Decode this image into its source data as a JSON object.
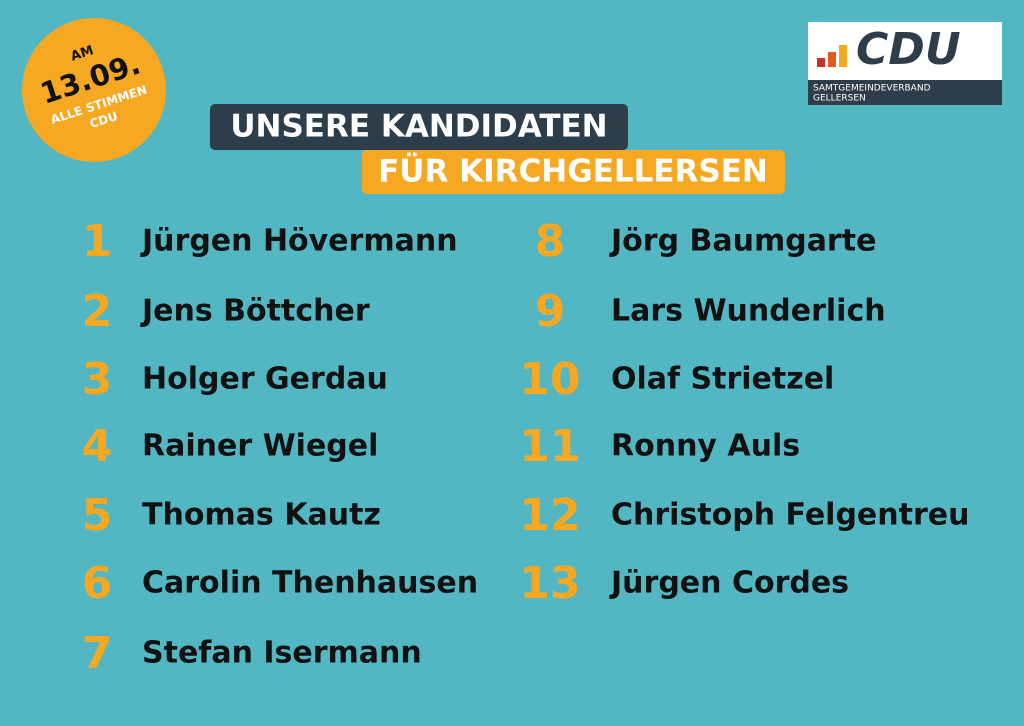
{
  "badge": {
    "lines": [
      "AM",
      "13.09.",
      "ALLE STIMMEN",
      "CDU"
    ]
  },
  "logo": {
    "name": "CDU",
    "subtitle": [
      "SAMTGEMEINDEVERBAND",
      "GELLERSEN"
    ]
  },
  "title": {
    "line1": "UNSERE KANDIDATEN",
    "line2": "FÜR KIRCHGELLERSEN"
  },
  "candidates": [
    {
      "number": "1",
      "name": "Jürgen Hövermann"
    },
    {
      "number": "2",
      "name": "Jens Böttcher"
    },
    {
      "number": "3",
      "name": "Holger Gerdau"
    },
    {
      "number": "4",
      "name": "Rainer Wiegel"
    },
    {
      "number": "5",
      "name": "Thomas Kautz"
    },
    {
      "number": "6",
      "name": "Carolin Thenhausen"
    },
    {
      "number": "7",
      "name": "Stefan Isermann"
    },
    {
      "number": "8",
      "name": "Jörg Baumgarte"
    },
    {
      "number": "9",
      "name": "Lars Wunderlich"
    },
    {
      "number": "10",
      "name": "Olaf Strietzel"
    },
    {
      "number": "11",
      "name": "Ronny Auls"
    },
    {
      "number": "12",
      "name": "Christoph Felgentreu"
    },
    {
      "number": "13",
      "name": "Jürgen Cordes"
    }
  ]
}
